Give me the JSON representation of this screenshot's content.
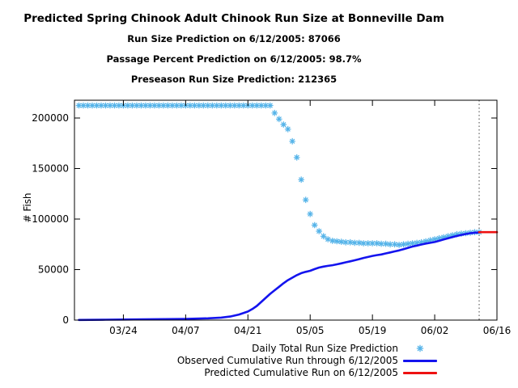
{
  "titles": {
    "main": "Predicted Spring Chinook Adult Chinook Run Size at Bonneville Dam",
    "sub1": "Run Size Prediction on 6/12/2005: 87066",
    "sub2": "Passage Percent Prediction on 6/12/2005: 98.7%",
    "sub3": "Preseason Run Size Prediction: 212365"
  },
  "chart_data": {
    "type": "line",
    "title": "Predicted Spring Chinook Adult Chinook Run Size at Bonneville Dam",
    "xlabel": "",
    "ylabel": "# Fish",
    "year": "2005",
    "x_start": "03/13",
    "x_end": "06/16",
    "ylim": [
      0,
      217600
    ],
    "y_ticks": [
      0,
      50000,
      100000,
      150000,
      200000
    ],
    "x_ticks": [
      "03/24",
      "04/07",
      "04/21",
      "05/05",
      "05/19",
      "06/02",
      "06/16"
    ],
    "prediction_date_vline": "06/12",
    "grid": "off",
    "legend_position": "below-right",
    "series": [
      {
        "name": "Daily Total Run Size Prediction",
        "type": "scatter",
        "marker": "asterisk",
        "color": "#56b4e9",
        "dates": [
          "03/14",
          "03/15",
          "03/16",
          "03/17",
          "03/18",
          "03/19",
          "03/20",
          "03/21",
          "03/22",
          "03/23",
          "03/24",
          "03/25",
          "03/26",
          "03/27",
          "03/28",
          "03/29",
          "03/30",
          "03/31",
          "04/01",
          "04/02",
          "04/03",
          "04/04",
          "04/05",
          "04/06",
          "04/07",
          "04/08",
          "04/09",
          "04/10",
          "04/11",
          "04/12",
          "04/13",
          "04/14",
          "04/15",
          "04/16",
          "04/17",
          "04/18",
          "04/19",
          "04/20",
          "04/21",
          "04/22",
          "04/23",
          "04/24",
          "04/25",
          "04/26",
          "04/27",
          "04/28",
          "04/29",
          "04/30",
          "05/01",
          "05/02",
          "05/03",
          "05/04",
          "05/05",
          "05/06",
          "05/07",
          "05/08",
          "05/09",
          "05/10",
          "05/11",
          "05/12",
          "05/13",
          "05/14",
          "05/15",
          "05/16",
          "05/17",
          "05/18",
          "05/19",
          "05/20",
          "05/21",
          "05/22",
          "05/23",
          "05/24",
          "05/25",
          "05/26",
          "05/27",
          "05/28",
          "05/29",
          "05/30",
          "05/31",
          "06/01",
          "06/02",
          "06/03",
          "06/04",
          "06/05",
          "06/06",
          "06/07",
          "06/08",
          "06/09",
          "06/10",
          "06/11",
          "06/12"
        ],
        "values": [
          212365,
          212365,
          212365,
          212365,
          212365,
          212365,
          212365,
          212365,
          212365,
          212365,
          212365,
          212365,
          212365,
          212365,
          212365,
          212365,
          212365,
          212365,
          212365,
          212365,
          212365,
          212365,
          212365,
          212365,
          212365,
          212365,
          212365,
          212365,
          212365,
          212365,
          212365,
          212365,
          212365,
          212365,
          212365,
          212365,
          212365,
          212365,
          212365,
          212365,
          212365,
          212365,
          212365,
          212365,
          205000,
          199000,
          193500,
          189000,
          177000,
          161000,
          139000,
          119000,
          105000,
          94000,
          88000,
          83000,
          80000,
          78500,
          78000,
          77500,
          77000,
          77000,
          76500,
          76500,
          76000,
          76000,
          76000,
          76000,
          75500,
          75500,
          75000,
          75000,
          74500,
          75000,
          75500,
          76000,
          76500,
          77000,
          78000,
          79000,
          80000,
          81000,
          82000,
          83000,
          84000,
          85000,
          85500,
          86000,
          86500,
          87000,
          87066
        ]
      },
      {
        "name": "Observed Cumulative Run through 6/12/2005",
        "type": "line",
        "color": "#1414ee",
        "dates": [
          "03/14",
          "03/20",
          "03/24",
          "03/31",
          "04/07",
          "04/12",
          "04/15",
          "04/17",
          "04/19",
          "04/21",
          "04/22",
          "04/23",
          "04/24",
          "04/25",
          "04/26",
          "04/27",
          "04/28",
          "04/29",
          "04/30",
          "05/01",
          "05/02",
          "05/03",
          "05/04",
          "05/05",
          "05/06",
          "05/07",
          "05/08",
          "05/09",
          "05/10",
          "05/11",
          "05/12",
          "05/13",
          "05/14",
          "05/15",
          "05/16",
          "05/17",
          "05/18",
          "05/19",
          "05/20",
          "05/21",
          "05/22",
          "05/23",
          "05/24",
          "05/25",
          "05/26",
          "05/27",
          "05/28",
          "05/29",
          "05/30",
          "05/31",
          "06/01",
          "06/02",
          "06/03",
          "06/04",
          "06/05",
          "06/06",
          "06/07",
          "06/08",
          "06/09",
          "06/10",
          "06/11",
          "06/12"
        ],
        "values": [
          200,
          400,
          600,
          900,
          1200,
          1800,
          2500,
          3500,
          5500,
          8500,
          11000,
          14000,
          18000,
          22000,
          26000,
          29500,
          33000,
          36500,
          39500,
          42000,
          44500,
          46500,
          47800,
          48800,
          50500,
          52000,
          53000,
          53700,
          54300,
          55200,
          56200,
          57200,
          58200,
          59200,
          60300,
          61500,
          62500,
          63500,
          64300,
          65000,
          66000,
          67000,
          68000,
          69000,
          70200,
          71500,
          72800,
          73800,
          74800,
          75800,
          76500,
          77300,
          78500,
          79800,
          81000,
          82200,
          83300,
          84300,
          85200,
          86000,
          86500,
          86900
        ]
      },
      {
        "name": "Predicted Cumulative Run on 6/12/2005",
        "type": "line",
        "color": "#ee1111",
        "dates": [
          "06/12",
          "06/16"
        ],
        "values": [
          87066,
          87066
        ]
      }
    ]
  }
}
